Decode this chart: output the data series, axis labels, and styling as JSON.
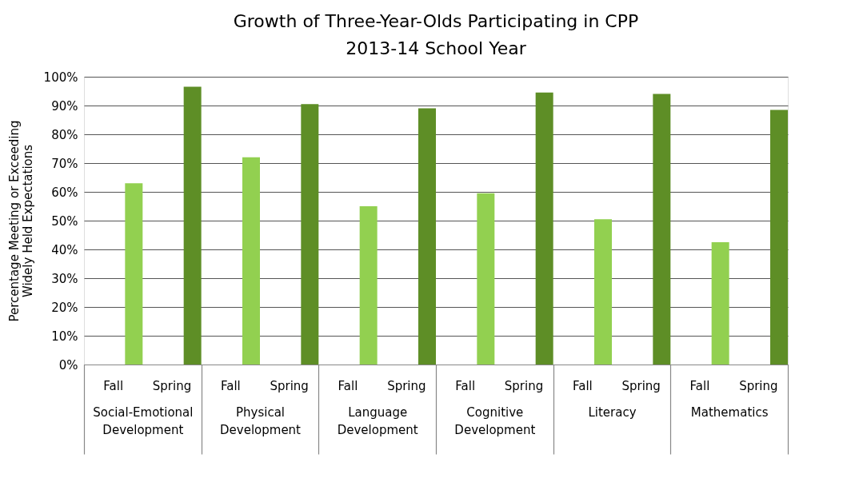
{
  "chart_data": {
    "type": "bar",
    "title": "Growth of Three-Year-Olds Participating in CPP",
    "subtitle": "2013-14 School Year",
    "ylabel": "Percentage Meeting or Exceeding Widely Held Expectations",
    "categories": [
      "Social-Emotional Development",
      "Physical Development",
      "Language Development",
      "Cognitive Development",
      "Literacy",
      "Mathematics"
    ],
    "series": [
      {
        "name": "Fall",
        "color": "#92d050",
        "values": [
          63,
          72,
          55,
          59.5,
          50.5,
          42.5
        ]
      },
      {
        "name": "Spring",
        "color": "#5e8e26",
        "values": [
          96.5,
          90.5,
          89,
          94.5,
          94,
          88.5
        ]
      }
    ],
    "ylim": [
      0,
      100
    ],
    "yticks": [
      {
        "value": 0,
        "label": "0%"
      },
      {
        "value": 10,
        "label": "10%"
      },
      {
        "value": 20,
        "label": "20%"
      },
      {
        "value": 30,
        "label": "30%"
      },
      {
        "value": 40,
        "label": "40%"
      },
      {
        "value": 50,
        "label": "50%"
      },
      {
        "value": 60,
        "label": "60%"
      },
      {
        "value": 70,
        "label": "70%"
      },
      {
        "value": 80,
        "label": "80%"
      },
      {
        "value": 90,
        "label": "90%"
      },
      {
        "value": 100,
        "label": "100%"
      }
    ],
    "grid": "y",
    "legend": false
  }
}
